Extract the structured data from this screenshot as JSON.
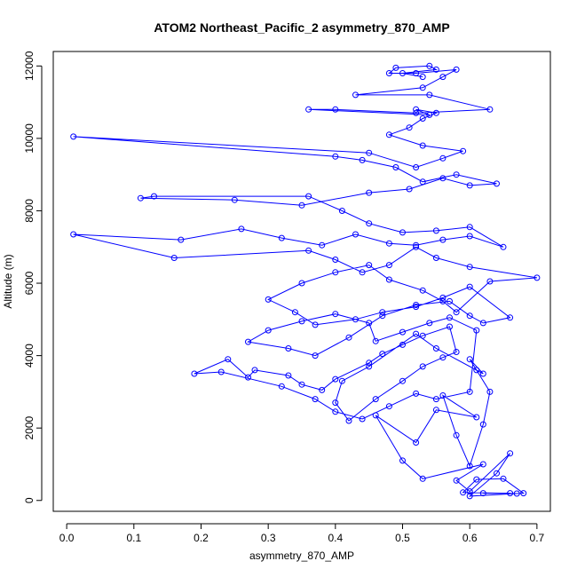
{
  "chart_data": {
    "type": "line",
    "title": "ATOM2 Northeast_Pacific_2 asymmetry_870_AMP",
    "xlabel": "asymmetry_870_AMP",
    "ylabel": "Altitude (m)",
    "xlim": [
      -0.02,
      0.72
    ],
    "ylim": [
      -300,
      12400
    ],
    "xticks": [
      0.0,
      0.1,
      0.2,
      0.3,
      0.4,
      0.5,
      0.6,
      0.7
    ],
    "xtick_labels": [
      "0.0",
      "0.1",
      "0.2",
      "0.3",
      "0.4",
      "0.5",
      "0.6",
      "0.7"
    ],
    "yticks": [
      0,
      2000,
      4000,
      6000,
      8000,
      10000,
      12000
    ],
    "ytick_labels": [
      "0",
      "2000",
      "4000",
      "6000",
      "8000",
      "10000",
      "12000"
    ],
    "grid": false,
    "color": "#0000ff",
    "series": [
      {
        "x": [
          0.66,
          0.62,
          0.67,
          0.59,
          0.61,
          0.65,
          0.68,
          0.6,
          0.64,
          0.66,
          0.6,
          0.58,
          0.62,
          0.53,
          0.5,
          0.46,
          0.52,
          0.55,
          0.61,
          0.56,
          0.58,
          0.6,
          0.62,
          0.63,
          0.61,
          0.6,
          0.62,
          0.55,
          0.52,
          0.45,
          0.41,
          0.4,
          0.42,
          0.46,
          0.5,
          0.53,
          0.56,
          0.58,
          0.57,
          0.53,
          0.5,
          0.47,
          0.45,
          0.4,
          0.38,
          0.35,
          0.33,
          0.28,
          0.27,
          0.24,
          0.19,
          0.23,
          0.32,
          0.37,
          0.4,
          0.44,
          0.48,
          0.52,
          0.55,
          0.6,
          0.61,
          0.57,
          0.54,
          0.5,
          0.46,
          0.45,
          0.4,
          0.35,
          0.3,
          0.27,
          0.33,
          0.37,
          0.42,
          0.47,
          0.52,
          0.57,
          0.6,
          0.62,
          0.66,
          0.6,
          0.56,
          0.52,
          0.47,
          0.43,
          0.37,
          0.34,
          0.3,
          0.35,
          0.4,
          0.45,
          0.48,
          0.53,
          0.56,
          0.58,
          0.63,
          0.7,
          0.6,
          0.55,
          0.52,
          0.48,
          0.44,
          0.4,
          0.36,
          0.16,
          0.01,
          0.17,
          0.26,
          0.32,
          0.38,
          0.43,
          0.48,
          0.52,
          0.56,
          0.6,
          0.65,
          0.6,
          0.55,
          0.5,
          0.45,
          0.41,
          0.36,
          0.13,
          0.11,
          0.25,
          0.35,
          0.45,
          0.51,
          0.56,
          0.6,
          0.64,
          0.58,
          0.53,
          0.49,
          0.44,
          0.4,
          0.01,
          0.45,
          0.52,
          0.56,
          0.59,
          0.53,
          0.48,
          0.51,
          0.53,
          0.55,
          0.52,
          0.54,
          0.36,
          0.4,
          0.52,
          0.63,
          0.54,
          0.43,
          0.53,
          0.56,
          0.58,
          0.52,
          0.48,
          0.49,
          0.54,
          0.55,
          0.5,
          0.53
        ],
        "y": [
          200,
          200,
          190,
          220,
          580,
          600,
          200,
          120,
          750,
          1300,
          250,
          550,
          1000,
          600,
          1100,
          2350,
          1600,
          2500,
          2300,
          2900,
          1800,
          950,
          2100,
          3000,
          3600,
          3900,
          3500,
          4200,
          4600,
          3700,
          3300,
          2700,
          2200,
          2800,
          3300,
          3700,
          3950,
          4100,
          4800,
          4550,
          4300,
          4050,
          3800,
          3350,
          3050,
          3200,
          3450,
          3600,
          3400,
          3900,
          3500,
          3550,
          3150,
          2800,
          2450,
          2250,
          2600,
          2950,
          2800,
          3000,
          4700,
          5050,
          4900,
          4650,
          4400,
          4900,
          5150,
          4950,
          4700,
          4380,
          4200,
          4000,
          4500,
          5100,
          5400,
          5500,
          5100,
          4900,
          5050,
          5900,
          5600,
          5350,
          5200,
          5000,
          4850,
          5200,
          5550,
          6000,
          6300,
          6500,
          6100,
          5800,
          5500,
          5200,
          6050,
          6150,
          6450,
          6700,
          7000,
          6500,
          6300,
          6650,
          6900,
          6700,
          7350,
          7200,
          7500,
          7250,
          7050,
          7350,
          7100,
          7050,
          7200,
          7300,
          7000,
          7550,
          7450,
          7400,
          7650,
          8000,
          8400,
          8400,
          8350,
          8300,
          8150,
          8500,
          8600,
          8900,
          8700,
          8750,
          9000,
          8800,
          9200,
          9400,
          9500,
          10050,
          9600,
          9200,
          9450,
          9650,
          9800,
          10100,
          10300,
          10550,
          10700,
          10800,
          10650,
          10800,
          10800,
          10700,
          10800,
          11200,
          11200,
          11400,
          11700,
          11900,
          11800,
          11800,
          11950,
          12000,
          11900,
          11800,
          11700
        ]
      }
    ]
  }
}
